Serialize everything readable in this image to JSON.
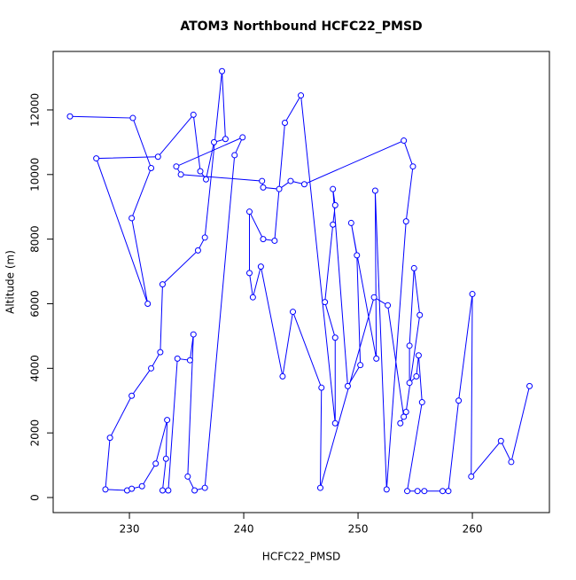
{
  "chart_data": {
    "type": "line",
    "title": "ATOM3 Northbound HCFC22_PMSD",
    "x_label": "HCFC22_PMSD",
    "y_label": "Altitude (m)",
    "color": "#0000ff",
    "x": [
      224.8,
      230.3,
      231.9,
      230.2,
      231.6,
      227.1,
      232.5,
      235.6,
      236.2,
      236.7,
      237.4,
      238.4,
      238.1,
      236.6,
      236.0,
      232.9,
      232.7,
      231.9,
      230.2,
      228.3,
      227.9,
      229.8,
      230.2,
      231.1,
      232.3,
      233.3,
      233.2,
      232.9,
      233.4,
      234.2,
      235.3,
      235.6,
      235.1,
      235.7,
      236.6,
      239.2,
      239.9,
      234.1,
      234.5,
      241.6,
      241.7,
      243.1,
      244.1,
      245.3,
      254.0,
      254.8,
      254.2,
      252.5,
      251.5,
      251.6,
      249.4,
      249.9,
      250.2,
      249.1,
      247.8,
      248.0,
      247.8,
      247.1,
      248.0,
      248.0,
      245.0,
      243.6,
      242.7,
      241.7,
      240.5,
      240.5,
      240.8,
      241.5,
      243.4,
      244.3,
      246.8,
      246.7,
      251.4,
      252.6,
      254.0,
      253.7,
      254.2,
      255.4,
      254.9,
      254.5,
      254.5,
      255.1,
      255.3,
      255.6,
      254.3,
      255.2,
      255.8,
      257.4,
      257.9,
      258.8,
      260.0,
      259.9,
      262.5,
      263.4,
      265.0
    ],
    "values": [
      11800,
      11750,
      10200,
      8650,
      6000,
      10500,
      10550,
      11850,
      10100,
      9850,
      11000,
      11100,
      13200,
      8050,
      7650,
      6600,
      4500,
      4000,
      3150,
      1850,
      250,
      220,
      270,
      350,
      1050,
      2400,
      1200,
      220,
      220,
      4300,
      4250,
      5050,
      650,
      220,
      300,
      10600,
      11150,
      10250,
      10000,
      9800,
      9600,
      9550,
      9800,
      9700,
      11050,
      10250,
      8550,
      250,
      9500,
      4300,
      8500,
      7500,
      4100,
      3450,
      9550,
      9050,
      8450,
      6050,
      4950,
      2300,
      12450,
      11600,
      7950,
      8000,
      8850,
      6950,
      6200,
      7150,
      3750,
      5750,
      3400,
      300,
      6200,
      5950,
      2500,
      2300,
      2650,
      5650,
      7100,
      4700,
      3550,
      3750,
      4400,
      2950,
      200,
      200,
      200,
      200,
      200,
      3000,
      6300,
      650,
      1750,
      1100,
      3450
    ],
    "xlim": [
      223.33,
      266.74
    ],
    "ylim": [
      -467,
      13811
    ],
    "xticks": [
      230,
      240,
      250,
      260
    ],
    "yticks": [
      0,
      2000,
      4000,
      6000,
      8000,
      10000,
      12000
    ]
  }
}
